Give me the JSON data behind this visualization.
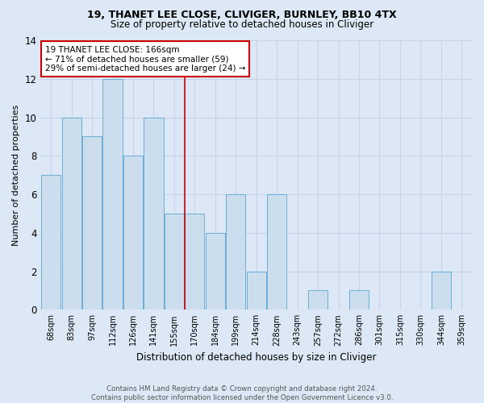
{
  "title1": "19, THANET LEE CLOSE, CLIVIGER, BURNLEY, BB10 4TX",
  "title2": "Size of property relative to detached houses in Cliviger",
  "xlabel": "Distribution of detached houses by size in Cliviger",
  "ylabel": "Number of detached properties",
  "categories": [
    "68sqm",
    "83sqm",
    "97sqm",
    "112sqm",
    "126sqm",
    "141sqm",
    "155sqm",
    "170sqm",
    "184sqm",
    "199sqm",
    "214sqm",
    "228sqm",
    "243sqm",
    "257sqm",
    "272sqm",
    "286sqm",
    "301sqm",
    "315sqm",
    "330sqm",
    "344sqm",
    "359sqm"
  ],
  "values": [
    7,
    10,
    9,
    12,
    8,
    10,
    5,
    5,
    4,
    6,
    2,
    6,
    0,
    1,
    0,
    1,
    0,
    0,
    0,
    2,
    0
  ],
  "bar_color": "#ccdeed",
  "bar_edge_color": "#6aaed6",
  "vline_color": "#cc0000",
  "annotation_title": "19 THANET LEE CLOSE: 166sqm",
  "annotation_line1": "← 71% of detached houses are smaller (59)",
  "annotation_line2": "29% of semi-detached houses are larger (24) →",
  "annotation_box_color": "#ffffff",
  "annotation_box_edge_color": "#cc0000",
  "footer1": "Contains HM Land Registry data © Crown copyright and database right 2024.",
  "footer2": "Contains public sector information licensed under the Open Government Licence v3.0.",
  "ylim": [
    0,
    14
  ],
  "yticks": [
    0,
    2,
    4,
    6,
    8,
    10,
    12,
    14
  ],
  "grid_color": "#c8d4e8",
  "background_color": "#dce8f5"
}
